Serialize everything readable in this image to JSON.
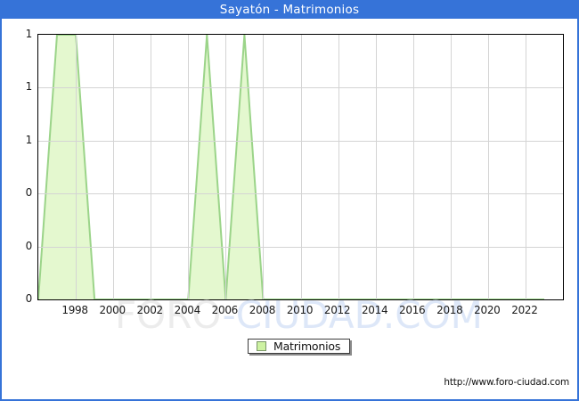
{
  "title_bar": {
    "text": "Sayatón - Matrimonios"
  },
  "watermark": {
    "part1": "FORO",
    "part2": "-CIUDAD.COM"
  },
  "legend": {
    "label": "Matrimonios"
  },
  "footer": {
    "url": "http://www.foro-ciudad.com"
  },
  "colors": {
    "titlebar_bg": "#3673d8",
    "frame_border": "#3673d8",
    "area_fill": "#e4f8cf",
    "area_stroke": "#9bd489",
    "grid_line": "#d4d4d4",
    "plot_border": "#000000",
    "title_text": "#ffffff",
    "axis_text": "#1a1a1a",
    "watermark_gray": "#ececec",
    "watermark_blue": "#dde7f8",
    "legend_swatch_fill": "#cdf2a2",
    "legend_swatch_border": "#7a9668"
  },
  "chart_data": {
    "type": "area",
    "title": "Sayatón - Matrimonios",
    "series_name": "Matrimonios",
    "x": [
      1996,
      1997,
      1998,
      1999,
      2000,
      2001,
      2002,
      2003,
      2004,
      2005,
      2006,
      2007,
      2008,
      2009,
      2010,
      2011,
      2012,
      2013,
      2014,
      2015,
      2016,
      2017,
      2018,
      2019,
      2020,
      2021,
      2022,
      2023
    ],
    "values": [
      0,
      1,
      1,
      0,
      0,
      0,
      0,
      0,
      0,
      1,
      0,
      1,
      0,
      0,
      0,
      0,
      0,
      0,
      0,
      0,
      0,
      0,
      0,
      0,
      0,
      0,
      0,
      0
    ],
    "ylim": [
      0,
      1
    ],
    "y_tick_labels_top_to_bottom": [
      "1",
      "1",
      "1",
      "0",
      "0",
      "0"
    ],
    "x_tick_labels": [
      "1998",
      "2000",
      "2002",
      "2004",
      "2006",
      "2008",
      "2010",
      "2012",
      "2014",
      "2016",
      "2018",
      "2020",
      "2022"
    ],
    "grid": true,
    "legend_position": "bottom-center"
  }
}
